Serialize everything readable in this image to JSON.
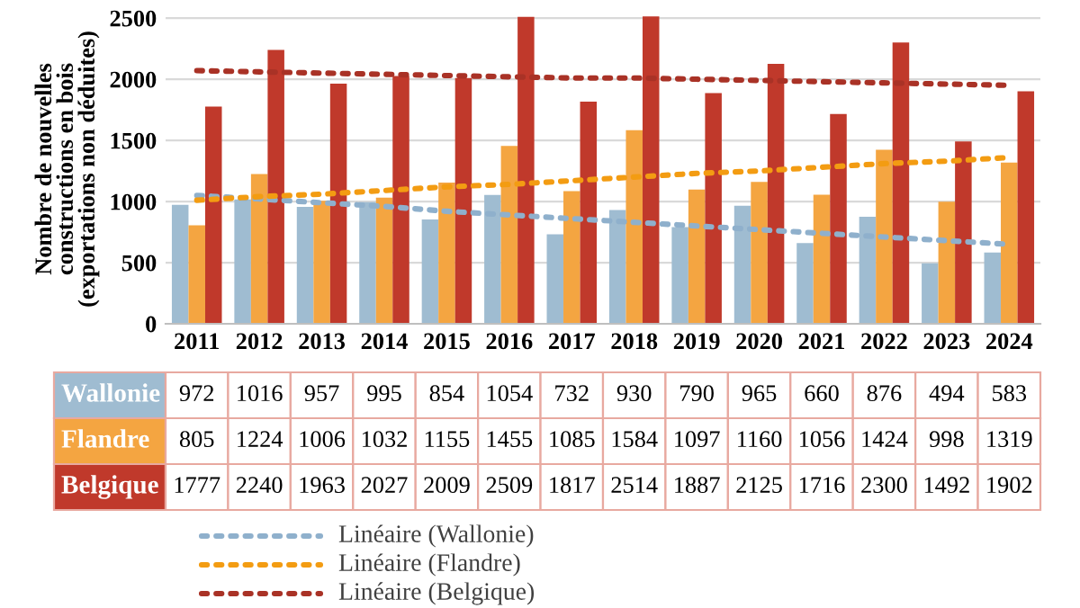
{
  "chart_data": {
    "type": "bar",
    "ylabel": "Nombre de nouvelles\nconstructions en bois\n(exportations non déduites)",
    "categories": [
      "2011",
      "2012",
      "2013",
      "2014",
      "2015",
      "2016",
      "2017",
      "2018",
      "2019",
      "2020",
      "2021",
      "2022",
      "2023",
      "2024"
    ],
    "series": [
      {
        "name": "Wallonie",
        "color": "#9fbcd1",
        "values": [
          972,
          1016,
          957,
          995,
          854,
          1054,
          732,
          930,
          790,
          965,
          660,
          876,
          494,
          583
        ],
        "value_labels": [
          "972",
          "1016",
          "957",
          "995",
          "854",
          "1054",
          "732",
          "930",
          "790",
          "965",
          "660",
          "876",
          "494",
          "583"
        ]
      },
      {
        "name": "Flandre",
        "color": "#f4a541",
        "values": [
          805,
          1224,
          1006,
          1032,
          1155,
          1455,
          1085,
          1584,
          1097,
          1160,
          1056,
          1424,
          998,
          1319
        ],
        "value_labels": [
          "805",
          "1224",
          "1006",
          "1032",
          "1155",
          "1455",
          "1085",
          "1584",
          "1097",
          "1160",
          "1056",
          "1424",
          "998",
          "1319"
        ]
      },
      {
        "name": "Belgique",
        "color": "#c0392b",
        "values": [
          1777,
          2240,
          1963,
          2027,
          2009,
          2509,
          1817,
          2514,
          1887,
          2125,
          1716,
          2300,
          1492,
          1902
        ],
        "value_labels": [
          "1777",
          "2240",
          "1963",
          "2027",
          "2009",
          "2509",
          "1817",
          "2514",
          "1887",
          "2125",
          "1716",
          "2300",
          "1492",
          "1902"
        ]
      },
      {
        "name": "Linéaire (Wallonie)",
        "type": "line",
        "line_style": "dotted",
        "color": "#8fb0cc",
        "values": [
          1050,
          1020,
          990,
          960,
          920,
          890,
          860,
          830,
          800,
          770,
          740,
          710,
          680,
          650
        ]
      },
      {
        "name": "Linéaire (Flandre)",
        "type": "line",
        "line_style": "dotted",
        "color": "#f39c12",
        "values": [
          1010,
          1040,
          1060,
          1090,
          1120,
          1140,
          1170,
          1200,
          1230,
          1250,
          1280,
          1310,
          1330,
          1360
        ]
      },
      {
        "name": "Linéaire (Belgique)",
        "type": "line",
        "line_style": "dotted",
        "color": "#a93226",
        "values": [
          2070,
          2060,
          2050,
          2040,
          2030,
          2020,
          2010,
          2010,
          2000,
          1990,
          1980,
          1970,
          1960,
          1950
        ]
      }
    ],
    "ylim": [
      0,
      2530
    ],
    "yticks": [
      0,
      500,
      1000,
      1500,
      2000,
      2500
    ],
    "grid": "y",
    "legend": "bottom",
    "marker": "none"
  }
}
